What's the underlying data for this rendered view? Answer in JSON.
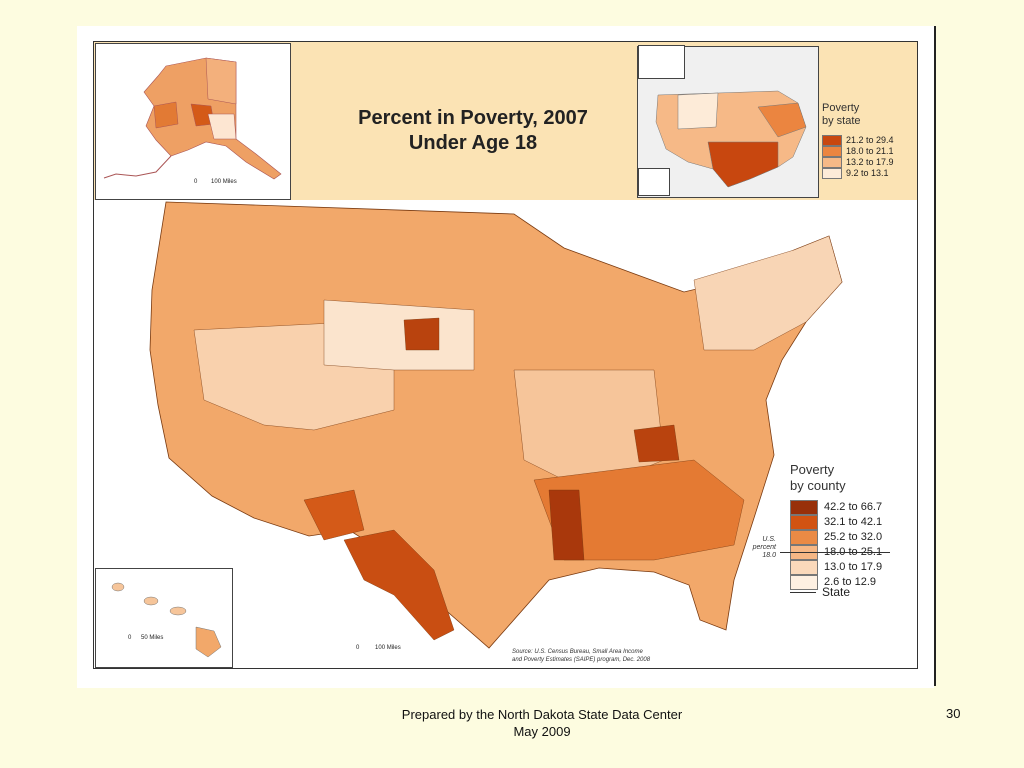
{
  "map": {
    "title_line1": "Percent in Poverty, 2007",
    "title_line2": "Under Age 18",
    "state_legend": {
      "title_line1": "Poverty",
      "title_line2": "by state",
      "classes": [
        {
          "label": "21.2 to 29.4",
          "color": "#c8470f"
        },
        {
          "label": "18.0 to 21.1",
          "color": "#eb8540"
        },
        {
          "label": "13.2 to 17.9",
          "color": "#f6b987"
        },
        {
          "label": "9.2 to 13.1",
          "color": "#fdebd8"
        }
      ]
    },
    "county_legend": {
      "title_line1": "Poverty",
      "title_line2": "by county",
      "classes": [
        {
          "label": "42.2 to 66.7",
          "color": "#98300a"
        },
        {
          "label": "32.1 to 42.1",
          "color": "#d25312"
        },
        {
          "label": "25.2 to 32.0",
          "color": "#ea8a45"
        },
        {
          "label": "18.0 to 25.1",
          "color": "#f6b785"
        },
        {
          "label": "13.0 to 17.9",
          "color": "#fbd9bb"
        },
        {
          "label": "2.6 to 12.9",
          "color": "#fef0e2"
        }
      ],
      "us_percent_label_line1": "U.S.",
      "us_percent_label_line2": "percent",
      "us_percent_value": "18.0",
      "state_line_label": "State"
    },
    "scale_alaska": {
      "zero": "0",
      "label": "100 Miles"
    },
    "scale_conus": {
      "zero": "0",
      "label": "100 Miles"
    },
    "scale_hawaii": {
      "zero": "0",
      "label": "50 Miles"
    },
    "source_line1": "Source: U.S. Census Bureau, Small Area Income",
    "source_line2": "and Poverty Estimates (SAIPE) program, Dec. 2008"
  },
  "footer": {
    "line1": "Prepared by the North Dakota State Data Center",
    "line2": "May 2009",
    "page_number": "30"
  }
}
